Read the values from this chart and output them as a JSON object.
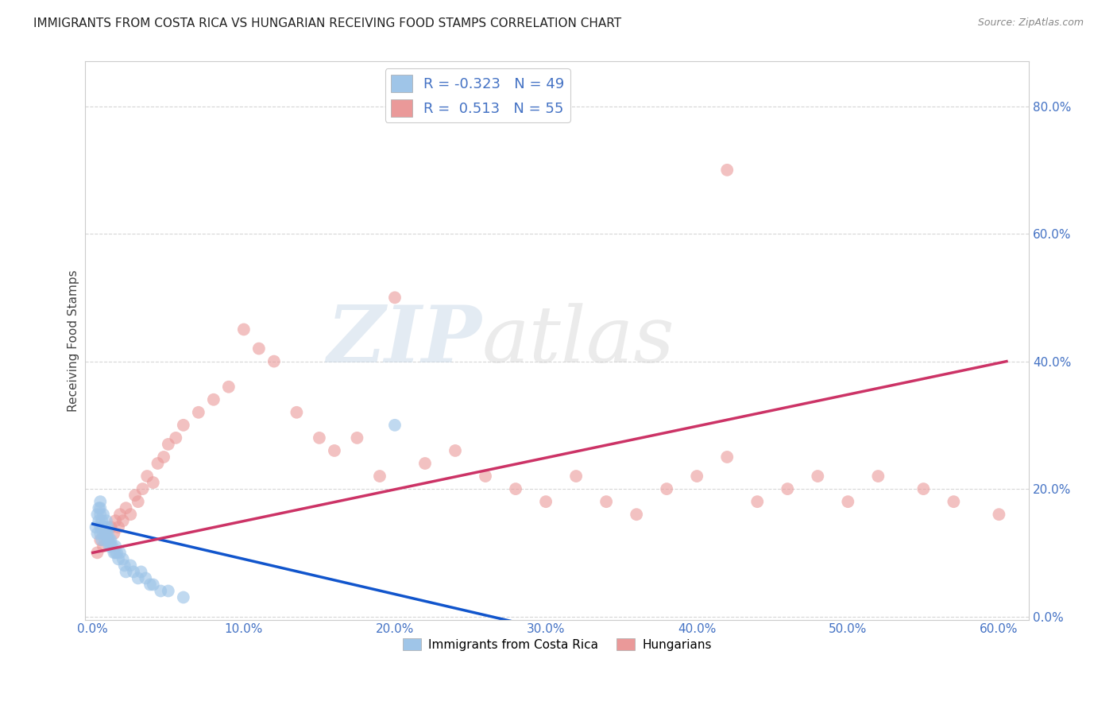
{
  "title": "IMMIGRANTS FROM COSTA RICA VS HUNGARIAN RECEIVING FOOD STAMPS CORRELATION CHART",
  "source": "Source: ZipAtlas.com",
  "tick_color": "#4472c4",
  "ylabel": "Receiving Food Stamps",
  "xlim": [
    -0.005,
    0.62
  ],
  "ylim": [
    -0.005,
    0.87
  ],
  "x_ticks": [
    0.0,
    0.1,
    0.2,
    0.3,
    0.4,
    0.5,
    0.6
  ],
  "x_tick_labels": [
    "0.0%",
    "10.0%",
    "20.0%",
    "30.0%",
    "40.0%",
    "50.0%",
    "60.0%"
  ],
  "y_ticks": [
    0.0,
    0.2,
    0.4,
    0.6,
    0.8
  ],
  "y_tick_labels": [
    "0.0%",
    "20.0%",
    "40.0%",
    "60.0%",
    "80.0%"
  ],
  "background_color": "#ffffff",
  "grid_color": "#cccccc",
  "blue_color": "#9fc5e8",
  "pink_color": "#ea9999",
  "blue_line_color": "#1155cc",
  "pink_line_color": "#cc3366",
  "r_blue": -0.323,
  "n_blue": 49,
  "r_pink": 0.513,
  "n_pink": 55,
  "legend_label_blue": "Immigrants from Costa Rica",
  "legend_label_pink": "Hungarians",
  "watermark_zip": "ZIP",
  "watermark_atlas": "atlas",
  "blue_scatter_x": [
    0.002,
    0.003,
    0.003,
    0.004,
    0.004,
    0.005,
    0.005,
    0.005,
    0.005,
    0.005,
    0.006,
    0.006,
    0.006,
    0.007,
    0.007,
    0.007,
    0.008,
    0.008,
    0.008,
    0.009,
    0.009,
    0.01,
    0.01,
    0.01,
    0.011,
    0.011,
    0.012,
    0.012,
    0.013,
    0.014,
    0.015,
    0.015,
    0.016,
    0.017,
    0.018,
    0.02,
    0.021,
    0.022,
    0.025,
    0.027,
    0.03,
    0.032,
    0.035,
    0.038,
    0.04,
    0.045,
    0.05,
    0.06,
    0.2
  ],
  "blue_scatter_y": [
    0.14,
    0.13,
    0.16,
    0.17,
    0.15,
    0.14,
    0.13,
    0.16,
    0.17,
    0.18,
    0.14,
    0.12,
    0.15,
    0.13,
    0.14,
    0.16,
    0.13,
    0.14,
    0.12,
    0.13,
    0.15,
    0.12,
    0.13,
    0.14,
    0.12,
    0.11,
    0.11,
    0.12,
    0.11,
    0.1,
    0.1,
    0.11,
    0.1,
    0.09,
    0.1,
    0.09,
    0.08,
    0.07,
    0.08,
    0.07,
    0.06,
    0.07,
    0.06,
    0.05,
    0.05,
    0.04,
    0.04,
    0.03,
    0.3
  ],
  "pink_scatter_x": [
    0.003,
    0.005,
    0.007,
    0.008,
    0.01,
    0.012,
    0.014,
    0.015,
    0.017,
    0.018,
    0.02,
    0.022,
    0.025,
    0.028,
    0.03,
    0.033,
    0.036,
    0.04,
    0.043,
    0.047,
    0.05,
    0.055,
    0.06,
    0.07,
    0.08,
    0.09,
    0.1,
    0.11,
    0.12,
    0.135,
    0.15,
    0.16,
    0.175,
    0.19,
    0.2,
    0.22,
    0.24,
    0.26,
    0.28,
    0.3,
    0.32,
    0.34,
    0.36,
    0.38,
    0.4,
    0.42,
    0.44,
    0.46,
    0.48,
    0.5,
    0.52,
    0.55,
    0.57,
    0.6,
    0.42
  ],
  "pink_scatter_y": [
    0.1,
    0.12,
    0.11,
    0.13,
    0.12,
    0.14,
    0.13,
    0.15,
    0.14,
    0.16,
    0.15,
    0.17,
    0.16,
    0.19,
    0.18,
    0.2,
    0.22,
    0.21,
    0.24,
    0.25,
    0.27,
    0.28,
    0.3,
    0.32,
    0.34,
    0.36,
    0.45,
    0.42,
    0.4,
    0.32,
    0.28,
    0.26,
    0.28,
    0.22,
    0.5,
    0.24,
    0.26,
    0.22,
    0.2,
    0.18,
    0.22,
    0.18,
    0.16,
    0.2,
    0.22,
    0.25,
    0.18,
    0.2,
    0.22,
    0.18,
    0.22,
    0.2,
    0.18,
    0.16,
    0.7
  ],
  "blue_regr": [
    0.0,
    0.3,
    0.145,
    -0.02
  ],
  "pink_regr": [
    0.0,
    0.605,
    0.1,
    0.4
  ]
}
